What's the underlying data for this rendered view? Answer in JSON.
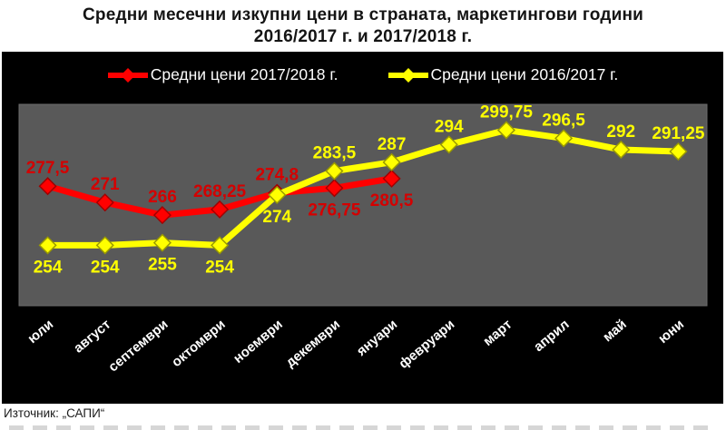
{
  "chart_data": {
    "type": "line",
    "title": "Средни месечни изкупни цени в страната, маркетингови години 2016/2017 г. и 2017/2018 г.",
    "title_lines": [
      "Средни месечни изкупни цени в страната, маркетингови години",
      "2016/2017 г. и 2017/2018 г."
    ],
    "source_note": "Източник: „САПИ“",
    "categories": [
      "юли",
      "август",
      "септември",
      "октомври",
      "ноември",
      "декември",
      "януари",
      "февруари",
      "март",
      "април",
      "май",
      "юни"
    ],
    "series": [
      {
        "name": "Средни цени 2017/2018 г.",
        "color": "#ff0000",
        "edge_color": "#a00000",
        "label_color": "#d40000",
        "values": [
          277.5,
          271,
          266,
          268.25,
          274.8,
          276.75,
          280.5
        ],
        "labels": [
          "277,5",
          "271",
          "266",
          "268,25",
          "274,8",
          "276,75",
          "280,5"
        ],
        "label_position": [
          "above",
          "above",
          "above",
          "above",
          "above",
          "below",
          "below"
        ]
      },
      {
        "name": "Средни цени 2016/2017 г.",
        "color": "#ffff00",
        "edge_color": "#9a9a00",
        "label_color": "#ffff00",
        "values": [
          254,
          254,
          255,
          254,
          274,
          283.5,
          287,
          294,
          299.75,
          296.5,
          292,
          291.25
        ],
        "labels": [
          "254",
          "254",
          "255",
          "254",
          "274",
          "283,5",
          "287",
          "294",
          "299,75",
          "296,5",
          "292",
          "291,25"
        ],
        "label_position": [
          "below",
          "below",
          "below",
          "below",
          "below",
          "above",
          "above",
          "above",
          "above",
          "above",
          "above",
          "above"
        ]
      }
    ],
    "xlabel": "",
    "ylabel": "",
    "ylim": [
      230,
      310
    ],
    "grid": false,
    "legend_position": "top",
    "plot_bg_color": "#595959",
    "chart_bg_color": "#000000",
    "page_bg_color": "#ffffff",
    "x_label_color": "#ffffff",
    "legend_text_color": "#ffffff"
  }
}
